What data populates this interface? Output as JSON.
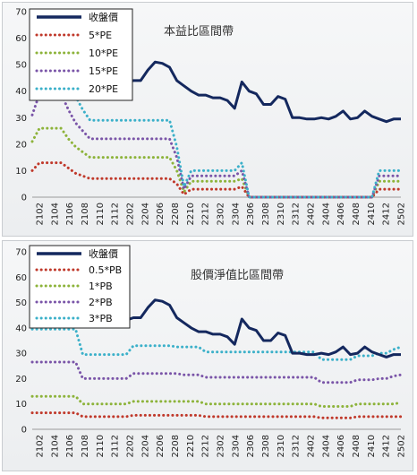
{
  "chart_data": [
    {
      "type": "line",
      "title": "本益比區間帶",
      "ylim": [
        0,
        70
      ],
      "yticks": [
        0,
        10,
        20,
        30,
        40,
        50,
        60,
        70
      ],
      "xticks": [
        "2102",
        "2104",
        "2106",
        "2108",
        "2110",
        "2112",
        "2202",
        "2204",
        "2206",
        "2208",
        "2210",
        "2212",
        "2302",
        "2304",
        "2306",
        "2308",
        "2310",
        "2312",
        "2402",
        "2404",
        "2406",
        "2408",
        "2410",
        "2412",
        "2502"
      ],
      "legend": "top-left",
      "series": [
        {
          "name": "收盤價",
          "style": "solid",
          "color": "#14285e",
          "values": [
            51,
            47,
            43,
            45,
            42,
            42,
            44,
            46,
            45,
            43,
            41,
            41,
            46,
            43,
            44,
            44,
            48,
            51,
            50.5,
            49,
            44,
            42,
            40,
            38.5,
            38.5,
            37.5,
            37.5,
            36.5,
            33.5,
            43.5,
            40,
            39,
            35,
            35,
            38,
            37,
            30,
            30,
            29.5,
            29.5,
            30,
            29.5,
            30.5,
            32.5,
            29.5,
            30,
            32.5,
            30.5,
            29.5,
            28.5,
            29.5,
            29.5
          ]
        },
        {
          "name": "5*PE",
          "style": "dotted",
          "color": "#c0392b",
          "values": [
            10,
            13,
            13,
            13,
            13,
            11,
            9,
            8,
            7,
            7,
            7,
            7,
            7,
            7,
            7,
            7,
            7,
            7,
            7,
            7,
            5,
            1,
            3,
            3,
            3,
            3,
            3,
            3,
            3,
            4,
            0,
            0,
            0,
            0,
            0,
            0,
            0,
            0,
            0,
            0,
            0,
            0,
            0,
            0,
            0,
            0,
            0,
            0,
            3,
            3,
            3,
            3
          ]
        },
        {
          "name": "10*PE",
          "style": "dotted",
          "color": "#8db33a",
          "values": [
            21,
            26,
            26,
            26,
            26,
            22,
            19,
            17,
            15,
            15,
            15,
            15,
            15,
            15,
            15,
            15,
            15,
            15,
            15,
            15,
            10,
            2,
            6,
            6,
            6,
            6,
            6,
            6,
            6,
            7,
            0,
            0,
            0,
            0,
            0,
            0,
            0,
            0,
            0,
            0,
            0,
            0,
            0,
            0,
            0,
            0,
            0,
            0,
            6,
            6,
            6,
            6
          ]
        },
        {
          "name": "15*PE",
          "style": "dotted",
          "color": "#7a55a8",
          "values": [
            31,
            39,
            39,
            39,
            39,
            33,
            28,
            25,
            22,
            22,
            22,
            22,
            22,
            22,
            22,
            22,
            22,
            22,
            22,
            22,
            15,
            3,
            8,
            8,
            8,
            8,
            8,
            8,
            8,
            10,
            0,
            0,
            0,
            0,
            0,
            0,
            0,
            0,
            0,
            0,
            0,
            0,
            0,
            0,
            0,
            0,
            0,
            0,
            8,
            8,
            8,
            8
          ]
        },
        {
          "name": "20*PE",
          "style": "dotted",
          "color": "#3bb0c9",
          "values": [
            41,
            52,
            52,
            52,
            52,
            44,
            38,
            33,
            29,
            29,
            29,
            29,
            29,
            29,
            29,
            29,
            29,
            29,
            29,
            29,
            19,
            4,
            10,
            10,
            10,
            10,
            10,
            10,
            10,
            13,
            0,
            0,
            0,
            0,
            0,
            0,
            0,
            0,
            0,
            0,
            0,
            0,
            0,
            0,
            0,
            0,
            0,
            0,
            10,
            10,
            10,
            10
          ]
        }
      ]
    },
    {
      "type": "line",
      "title": "股價淨值比區間帶",
      "ylim": [
        0,
        70
      ],
      "yticks": [
        0,
        10,
        20,
        30,
        40,
        50,
        60,
        70
      ],
      "xticks": [
        "2102",
        "2104",
        "2106",
        "2108",
        "2110",
        "2112",
        "2202",
        "2204",
        "2206",
        "2208",
        "2210",
        "2212",
        "2302",
        "2304",
        "2306",
        "2308",
        "2310",
        "2312",
        "2402",
        "2404",
        "2406",
        "2408",
        "2410",
        "2412",
        "2502"
      ],
      "legend": "top-left",
      "series": [
        {
          "name": "收盤價",
          "style": "solid",
          "color": "#14285e",
          "values": [
            51,
            47,
            43,
            45,
            42,
            42,
            44,
            46,
            45,
            43,
            41,
            41,
            46,
            43,
            44,
            44,
            48,
            51,
            50.5,
            49,
            44,
            42,
            40,
            38.5,
            38.5,
            37.5,
            37.5,
            36.5,
            33.5,
            43.5,
            40,
            39,
            35,
            35,
            38,
            37,
            30,
            30,
            29.5,
            29.5,
            30,
            29.5,
            30.5,
            32.5,
            29.5,
            30,
            32.5,
            30.5,
            29.5,
            28.5,
            29.5,
            29.5
          ]
        },
        {
          "name": "0.5*PB",
          "style": "dotted",
          "color": "#c0392b",
          "values": [
            6.5,
            6.5,
            6.5,
            6.5,
            6.5,
            6.5,
            6.5,
            5,
            5,
            5,
            5,
            5,
            5,
            5,
            5.5,
            5.5,
            5.5,
            5.5,
            5.5,
            5.5,
            5.5,
            5.5,
            5.5,
            5.5,
            5,
            5,
            5,
            5,
            5,
            5,
            5,
            5,
            5,
            5,
            5,
            5,
            5,
            5,
            5,
            5,
            4.5,
            4.5,
            4.5,
            4.5,
            4.5,
            5,
            5,
            5,
            5,
            5,
            5,
            5
          ]
        },
        {
          "name": "1*PB",
          "style": "dotted",
          "color": "#8db33a",
          "values": [
            13,
            13,
            13,
            13,
            13,
            13,
            13,
            10,
            10,
            10,
            10,
            10,
            10,
            10,
            11,
            11,
            11,
            11,
            11,
            11,
            11,
            11,
            11,
            11,
            10,
            10,
            10,
            10,
            10,
            10,
            10,
            10,
            10,
            10,
            10,
            10,
            10,
            10,
            10,
            10,
            9,
            9,
            9,
            9,
            9,
            10,
            10,
            10,
            10,
            10,
            10,
            10.5
          ]
        },
        {
          "name": "2*PB",
          "style": "dotted",
          "color": "#7a55a8",
          "values": [
            26.5,
            26.5,
            26.5,
            26.5,
            26.5,
            26.5,
            26.5,
            20,
            20,
            20,
            20,
            20,
            20,
            20,
            22,
            22,
            22,
            22,
            22,
            22,
            22,
            21.5,
            21.5,
            21.5,
            20.5,
            20.5,
            20.5,
            20.5,
            20.5,
            20.5,
            20.5,
            20.5,
            20.5,
            20.5,
            20.5,
            20.5,
            20.5,
            20.5,
            20.5,
            20.5,
            18.5,
            18.5,
            18.5,
            18.5,
            18.5,
            19.5,
            19.5,
            19.5,
            20,
            20,
            21,
            21.5
          ]
        },
        {
          "name": "3*PB",
          "style": "dotted",
          "color": "#3bb0c9",
          "values": [
            39.5,
            39.5,
            39.5,
            39.5,
            39.5,
            39.5,
            39.5,
            29.5,
            29.5,
            29.5,
            29.5,
            29.5,
            29.5,
            29.5,
            33,
            33,
            33,
            33,
            33,
            33,
            32.5,
            32.5,
            32.5,
            32.5,
            30.5,
            30.5,
            30.5,
            30.5,
            30.5,
            30.5,
            30.5,
            30.5,
            30.5,
            30.5,
            30.5,
            30.5,
            30.5,
            30.5,
            30.5,
            30.5,
            27.5,
            27.5,
            27.5,
            27.5,
            27.5,
            29,
            29,
            29,
            30,
            30,
            31.5,
            32.5
          ]
        }
      ]
    }
  ]
}
